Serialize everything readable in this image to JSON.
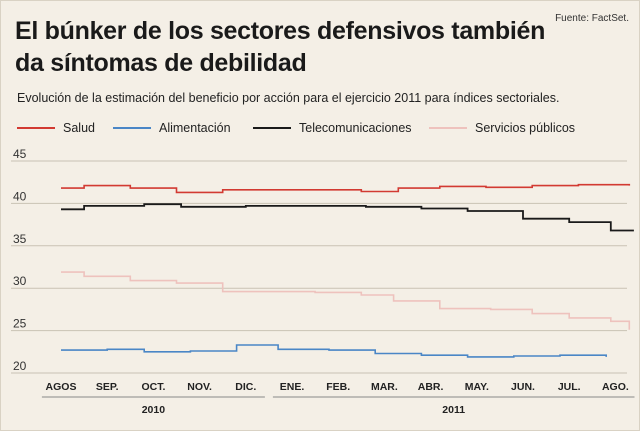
{
  "header": {
    "title_line1": "El búnker de los sectores defensivos también",
    "title_line2": "da síntomas de debilidad",
    "subtitle": "Evolución de la estimación del beneficio por acción para el ejercicio 2011 para índices sectoriales.",
    "source": "Fuente: FactSet."
  },
  "colors": {
    "background": "#f4efe6",
    "grid": "#c9c2b4",
    "salud": "#d23a32",
    "alimentacion": "#4a86c6",
    "telecomunicaciones": "#1a1a1a",
    "servicios": "#eec2bd"
  },
  "chart_data": {
    "type": "line",
    "title": "El búnker de los sectores defensivos también da síntomas de debilidad",
    "subtitle": "Evolución de la estimación del beneficio por acción para el ejercicio 2011 para índices sectoriales.",
    "categories": [
      "AGOS",
      "SEP.",
      "OCT.",
      "NOV.",
      "DIC.",
      "ENE.",
      "FEB.",
      "MAR.",
      "ABR.",
      "MAY.",
      "JUN.",
      "JUL.",
      "AGO."
    ],
    "year_groups": [
      {
        "label": "2010",
        "from": 0,
        "to": 4
      },
      {
        "label": "2011",
        "from": 5,
        "to": 12
      }
    ],
    "y_ticks": [
      20,
      25,
      30,
      35,
      40,
      45
    ],
    "ylim": [
      20,
      45
    ],
    "grid": true,
    "legend_position": "top",
    "series": [
      {
        "name": "Salud",
        "color_key": "salud",
        "points": [
          [
            0,
            41.8
          ],
          [
            0.5,
            42.1
          ],
          [
            1.5,
            41.8
          ],
          [
            2.5,
            41.3
          ],
          [
            3.5,
            41.6
          ],
          [
            5.5,
            41.6
          ],
          [
            6.5,
            41.4
          ],
          [
            7.3,
            41.8
          ],
          [
            8.2,
            42.0
          ],
          [
            9.2,
            41.9
          ],
          [
            10.2,
            42.1
          ],
          [
            11.2,
            42.2
          ],
          [
            12.3,
            42.1
          ]
        ]
      },
      {
        "name": "Alimentación",
        "color_key": "alimentacion",
        "points": [
          [
            0,
            22.7
          ],
          [
            1.0,
            22.8
          ],
          [
            1.8,
            22.5
          ],
          [
            2.8,
            22.6
          ],
          [
            3.8,
            23.3
          ],
          [
            4.7,
            22.8
          ],
          [
            5.8,
            22.7
          ],
          [
            6.8,
            22.3
          ],
          [
            7.8,
            22.1
          ],
          [
            8.8,
            21.9
          ],
          [
            9.8,
            22.0
          ],
          [
            10.8,
            22.1
          ],
          [
            11.8,
            21.9
          ]
        ]
      },
      {
        "name": "Telecomunicaciones",
        "color_key": "telecomunicaciones",
        "points": [
          [
            0,
            39.3
          ],
          [
            0.5,
            39.7
          ],
          [
            1.8,
            39.9
          ],
          [
            2.6,
            39.6
          ],
          [
            4.0,
            39.7
          ],
          [
            5.0,
            39.7
          ],
          [
            6.6,
            39.6
          ],
          [
            7.8,
            39.4
          ],
          [
            8.8,
            39.1
          ],
          [
            10.0,
            38.2
          ],
          [
            11.0,
            37.8
          ],
          [
            11.9,
            36.8
          ],
          [
            12.4,
            36.8
          ]
        ]
      },
      {
        "name": "Servicios públicos",
        "color_key": "servicios",
        "points": [
          [
            0,
            31.9
          ],
          [
            0.5,
            31.4
          ],
          [
            1.5,
            30.9
          ],
          [
            2.5,
            30.6
          ],
          [
            3.5,
            29.6
          ],
          [
            5.5,
            29.5
          ],
          [
            6.5,
            29.2
          ],
          [
            7.2,
            28.5
          ],
          [
            8.2,
            27.6
          ],
          [
            9.3,
            27.5
          ],
          [
            10.2,
            27.0
          ],
          [
            11.0,
            26.5
          ],
          [
            11.9,
            26.1
          ],
          [
            12.3,
            25.1
          ]
        ]
      }
    ]
  }
}
